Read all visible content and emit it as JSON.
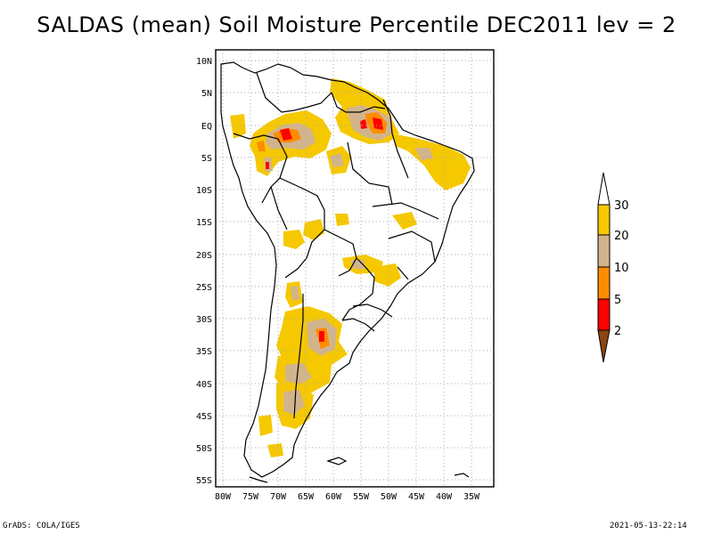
{
  "title": "SALDAS (mean) Soil Moisture Percentile DEC2011 lev = 2",
  "axes": {
    "lat_labels": [
      "10N",
      "5N",
      "EQ",
      "5S",
      "10S",
      "15S",
      "20S",
      "25S",
      "30S",
      "35S",
      "40S",
      "45S",
      "50S",
      "55S"
    ],
    "lat_values": [
      10,
      5,
      0,
      -5,
      -10,
      -15,
      -20,
      -25,
      -30,
      -35,
      -40,
      -45,
      -50,
      -55
    ],
    "lon_labels": [
      "80W",
      "75W",
      "70W",
      "65W",
      "60W",
      "55W",
      "50W",
      "45W",
      "40W",
      "35W"
    ],
    "lon_values": [
      -80,
      -75,
      -70,
      -65,
      -60,
      -55,
      -50,
      -45,
      -40,
      -35
    ]
  },
  "legend": {
    "levels": [
      "30",
      "20",
      "10",
      "5",
      "2"
    ],
    "colors": {
      "above30": "#ffffff",
      "b20_30": "#f5c800",
      "b10_20": "#d2b48c",
      "b5_10": "#ff8c00",
      "b2_5": "#ff0000",
      "below2": "#8b4513"
    }
  },
  "footer": {
    "left": "GrADS: COLA/IGES",
    "right": "2021-05-13-22:14"
  }
}
